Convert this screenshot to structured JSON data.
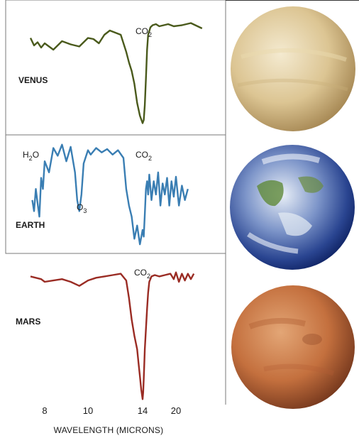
{
  "chart_data": {
    "type": "line",
    "xlabel": "WAVELENGTH (MICRONS)",
    "xticks": [
      8,
      10,
      14,
      20
    ],
    "panels": [
      {
        "name": "VENUS",
        "color": "#4a5a1c",
        "annotations": [
          {
            "text": "CO2",
            "x": 13.8
          }
        ],
        "series": {
          "x": [
            6.4,
            6.8,
            7.2,
            7.6,
            8.0,
            8.4,
            8.8,
            9.2,
            9.6,
            10.0,
            10.4,
            10.8,
            11.2,
            11.6,
            12.0,
            12.4,
            12.8,
            13.0,
            13.2,
            13.4,
            13.6,
            13.8,
            14.0,
            14.2,
            14.4,
            14.6,
            14.8,
            15.0,
            15.4,
            15.8,
            16.4,
            17.0,
            17.8,
            18.6,
            19.6,
            20.8,
            22.0,
            23.5
          ],
          "y": [
            0.83,
            0.76,
            0.79,
            0.74,
            0.78,
            0.72,
            0.8,
            0.77,
            0.75,
            0.83,
            0.82,
            0.78,
            0.86,
            0.9,
            0.88,
            0.86,
            0.7,
            0.6,
            0.52,
            0.4,
            0.22,
            0.1,
            0.03,
            0.06,
            0.2,
            0.45,
            0.72,
            0.86,
            0.93,
            0.95,
            0.96,
            0.94,
            0.95,
            0.96,
            0.94,
            0.95,
            0.97,
            0.92
          ]
        }
      },
      {
        "name": "EARTH",
        "color": "#3a7eb3",
        "annotations": [
          {
            "text": "H2O",
            "x": 7.2
          },
          {
            "text": "O3",
            "x": 9.6
          },
          {
            "text": "CO2",
            "x": 13.8
          }
        ],
        "series": {
          "x": [
            6.6,
            6.8,
            7.0,
            7.2,
            7.4,
            7.6,
            7.8,
            8.0,
            8.2,
            8.4,
            8.6,
            8.8,
            9.0,
            9.2,
            9.4,
            9.5,
            9.6,
            9.7,
            9.8,
            10.0,
            10.2,
            10.6,
            11.0,
            11.4,
            11.8,
            12.2,
            12.6,
            12.8,
            13.0,
            13.2,
            13.4,
            13.6,
            13.8,
            14.0,
            14.2,
            14.4,
            14.6,
            14.8,
            15.0,
            15.2,
            15.6,
            16.0,
            16.4,
            16.8,
            17.2,
            17.6,
            18.0,
            18.4,
            18.8,
            19.2,
            19.6,
            20.0,
            20.4,
            20.8,
            21.2,
            21.6
          ],
          "y": [
            0.45,
            0.35,
            0.55,
            0.42,
            0.3,
            0.65,
            0.55,
            0.8,
            0.7,
            0.92,
            0.85,
            0.95,
            0.8,
            0.93,
            0.7,
            0.45,
            0.35,
            0.5,
            0.78,
            0.9,
            0.86,
            0.92,
            0.88,
            0.91,
            0.86,
            0.9,
            0.83,
            0.55,
            0.4,
            0.3,
            0.1,
            0.22,
            0.05,
            0.18,
            0.12,
            0.32,
            0.55,
            0.62,
            0.5,
            0.68,
            0.45,
            0.62,
            0.5,
            0.7,
            0.4,
            0.6,
            0.5,
            0.65,
            0.4,
            0.62,
            0.48,
            0.66,
            0.4,
            0.58,
            0.45,
            0.55
          ]
        }
      },
      {
        "name": "MARS",
        "color": "#9a2c24",
        "annotations": [
          {
            "text": "CO2",
            "x": 13.8
          }
        ],
        "series": {
          "x": [
            6.4,
            7.0,
            7.6,
            8.0,
            8.4,
            8.8,
            9.2,
            9.6,
            10.0,
            10.6,
            11.2,
            11.8,
            12.4,
            12.8,
            13.0,
            13.2,
            13.4,
            13.6,
            13.7,
            13.8,
            13.9,
            14.0,
            14.1,
            14.2,
            14.3,
            14.4,
            14.6,
            14.8,
            15.0,
            15.2,
            15.6,
            16.2,
            17.0,
            18.0,
            19.0,
            19.6,
            20.0,
            20.4,
            20.8,
            21.2,
            21.6,
            22.0,
            22.4
          ],
          "y": [
            0.94,
            0.93,
            0.92,
            0.9,
            0.91,
            0.92,
            0.9,
            0.87,
            0.91,
            0.93,
            0.94,
            0.95,
            0.96,
            0.91,
            0.78,
            0.62,
            0.5,
            0.4,
            0.3,
            0.2,
            0.1,
            0.03,
            0.08,
            0.18,
            0.28,
            0.4,
            0.55,
            0.7,
            0.82,
            0.9,
            0.94,
            0.95,
            0.94,
            0.95,
            0.96,
            0.92,
            0.97,
            0.9,
            0.96,
            0.91,
            0.96,
            0.92,
            0.96
          ]
        }
      }
    ]
  },
  "planets": [
    {
      "name": "venus-image",
      "colors": [
        "#f2e7c6",
        "#d8c08e",
        "#a98c58"
      ]
    },
    {
      "name": "earth-image",
      "colors": [
        "#e8eef6",
        "#3a5aa8",
        "#0f2566"
      ]
    },
    {
      "name": "mars-image",
      "colors": [
        "#e0a070",
        "#c06a3a",
        "#7a3a1e"
      ]
    }
  ]
}
